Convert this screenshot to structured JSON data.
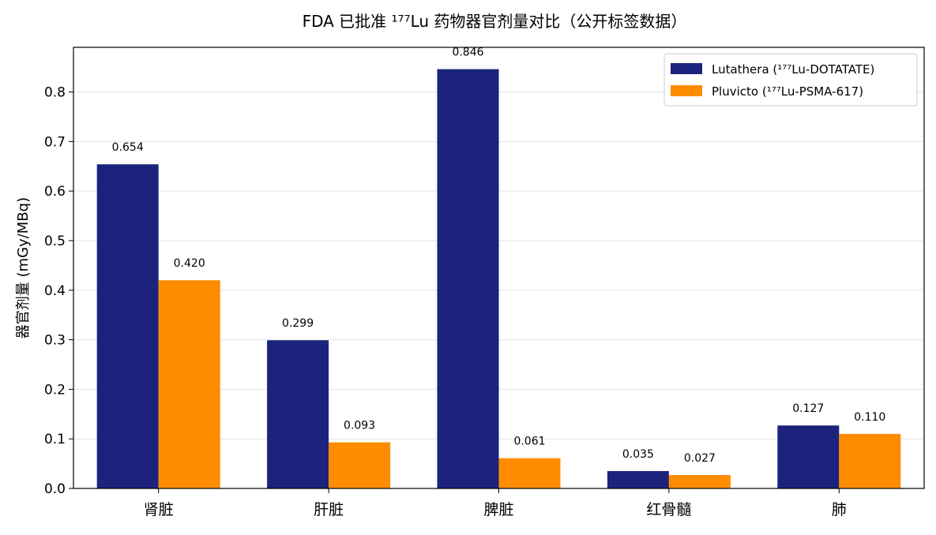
{
  "chart_data": {
    "type": "bar",
    "title": "FDA 已批准 ¹⁷⁷Lu 药物器官剂量对比（公开标签数据）",
    "xlabel": "",
    "ylabel": "器官剂量 (mGy/MBq)",
    "categories": [
      "肾脏",
      "肝脏",
      "脾脏",
      "红骨髓",
      "肺"
    ],
    "series": [
      {
        "name": "Lutathera (¹⁷⁷Lu-DOTATATE)",
        "color": "#1b237c",
        "values": [
          0.654,
          0.299,
          0.846,
          0.035,
          0.127
        ],
        "labels": [
          "0.654",
          "0.299",
          "0.846",
          "0.035",
          "0.127"
        ]
      },
      {
        "name": "Pluvicto (¹⁷⁷Lu-PSMA-617)",
        "color": "#ff8c00",
        "values": [
          0.42,
          0.093,
          0.061,
          0.027,
          0.11
        ],
        "labels": [
          "0.420",
          "0.093",
          "0.061",
          "0.027",
          "0.110"
        ]
      }
    ],
    "ylim": [
      0,
      0.89
    ],
    "yticks": [
      0.0,
      0.1,
      0.2,
      0.3,
      0.4,
      0.5,
      0.6,
      0.7,
      0.8
    ],
    "ytick_labels": [
      "0.0",
      "0.1",
      "0.2",
      "0.3",
      "0.4",
      "0.5",
      "0.6",
      "0.7",
      "0.8"
    ],
    "grid": "horizontal",
    "legend_position": "top-right"
  }
}
